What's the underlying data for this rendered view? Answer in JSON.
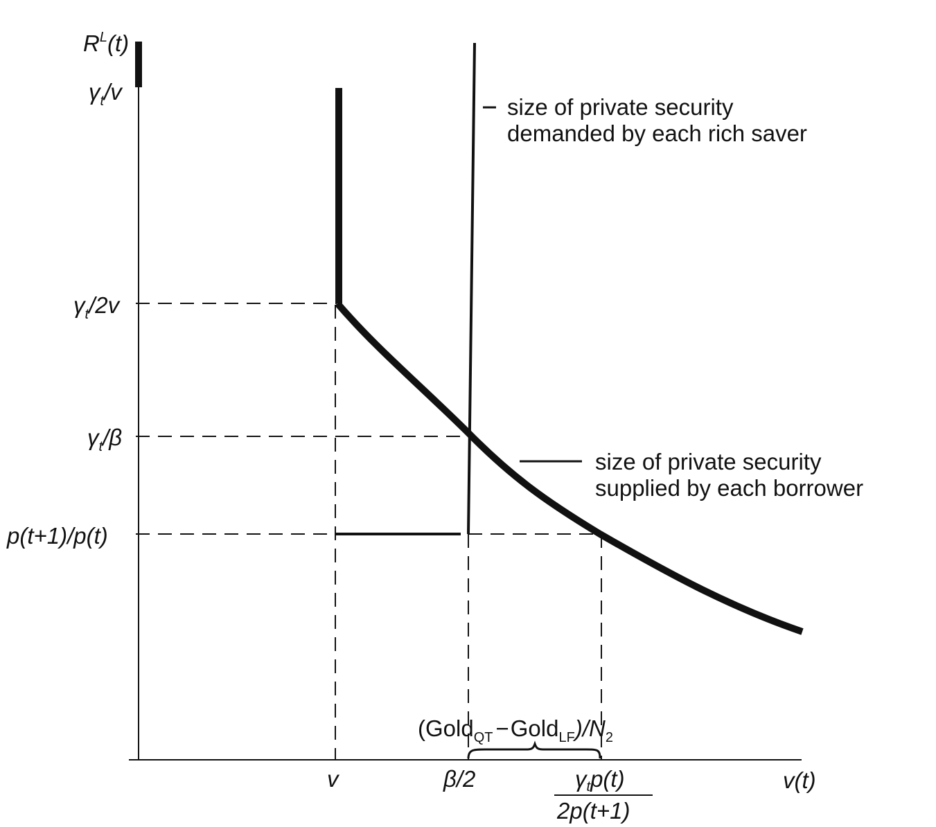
{
  "y_axis": {
    "title": "R",
    "title_sup": "L",
    "title_arg": "(t)",
    "ticks": {
      "gamma_over_v": "γ",
      "gamma_over_v_sub": "t",
      "gamma_over_v_tail": "/v",
      "gamma_over_2v": "γ",
      "gamma_over_2v_sub": "t",
      "gamma_over_2v_tail": "/2v",
      "gamma_over_beta": "γ",
      "gamma_over_beta_sub": "t",
      "gamma_over_beta_tail": "/β",
      "price_ratio": "p(t+1)/p(t)"
    }
  },
  "x_axis": {
    "title": "v(t)",
    "ticks": {
      "v": "v",
      "beta_half": "β/2",
      "frac_num_gamma": "γ",
      "frac_num_sub": "t",
      "frac_num_tail": "p(t)",
      "frac_den": "2p(t+1)"
    }
  },
  "brace_label": {
    "open": "(Gold",
    "sub1": "QT",
    "minus": "−",
    "gold2": "Gold",
    "sub2": "LF",
    "close": ")/N",
    "sub3": "2"
  },
  "annotations": {
    "demand_line1": "size of private security",
    "demand_line2": "demanded by each rich saver",
    "supply_line1": "size of private security",
    "supply_line2": "supplied by each borrower"
  }
}
